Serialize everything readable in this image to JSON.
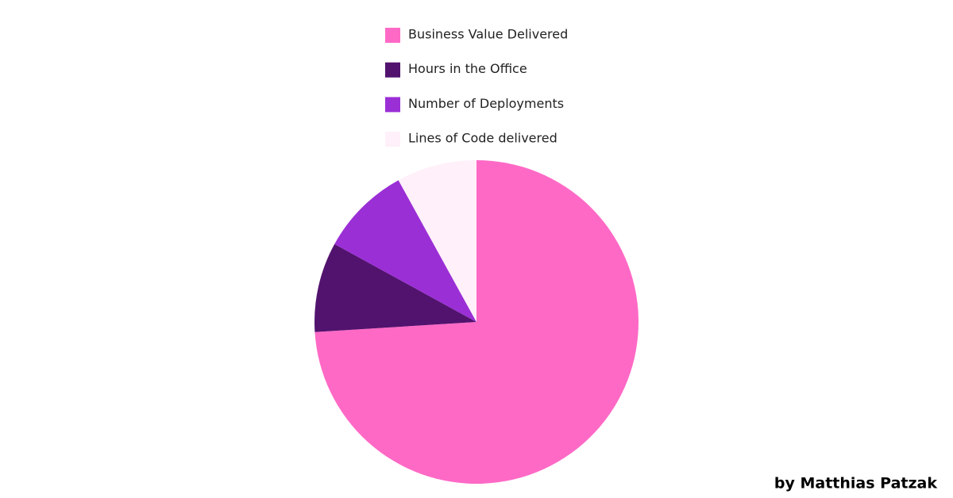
{
  "chart_data": {
    "type": "pie",
    "categories": [
      "Business Value Delivered",
      "Hours in the Office",
      "Number of Deployments",
      "Lines of Code delivered"
    ],
    "values": [
      74,
      9,
      9,
      8
    ],
    "colors": [
      "#ff69c6",
      "#52136e",
      "#9b2fd6",
      "#fff0f9"
    ],
    "legend": "top",
    "credit": "by Matthias Patzak"
  }
}
